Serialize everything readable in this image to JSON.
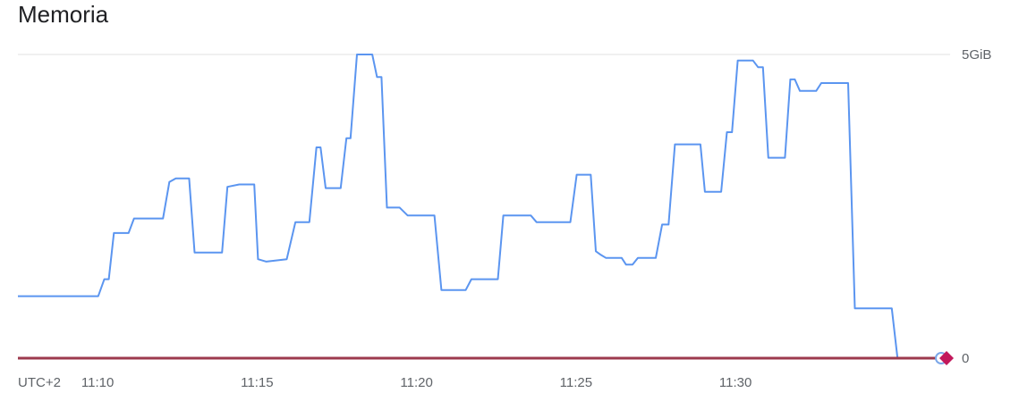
{
  "chart_data": {
    "type": "line",
    "title": "Memoria",
    "timezone_label": "UTC+2",
    "x_start_minutes": 7.5,
    "x_end_minutes": 34.2,
    "x_ticks": [
      {
        "t": 10,
        "label": "11:10"
      },
      {
        "t": 15,
        "label": "11:15"
      },
      {
        "t": 20,
        "label": "11:20"
      },
      {
        "t": 25,
        "label": "11:25"
      },
      {
        "t": 30,
        "label": "11:30"
      }
    ],
    "y_unit": "GiB",
    "ylim": [
      0,
      5
    ],
    "y_ticks": [
      {
        "value": 0,
        "label": "0"
      },
      {
        "value": 5,
        "label": "5GiB"
      }
    ],
    "grid": true,
    "colors": {
      "memory_line": "#5b95f0",
      "baseline": "#9c3a4e",
      "marker": "#c2185b",
      "marker_ring": "#7ba7e8",
      "gridline": "#e0e0e0",
      "title_text": "#202124",
      "axis_text": "#5f6368"
    },
    "series": [
      {
        "values": [
          [
            7.5,
            1.02
          ],
          [
            10.02,
            1.02
          ],
          [
            10.21,
            1.3
          ],
          [
            10.35,
            1.3
          ],
          [
            10.51,
            2.06
          ],
          [
            10.97,
            2.06
          ],
          [
            11.14,
            2.3
          ],
          [
            12.01,
            2.3
          ],
          [
            12.05,
            2.3
          ],
          [
            12.25,
            2.9
          ],
          [
            12.45,
            2.96
          ],
          [
            12.87,
            2.96
          ],
          [
            13.04,
            1.74
          ],
          [
            13.9,
            1.74
          ],
          [
            14.07,
            2.82
          ],
          [
            14.44,
            2.86
          ],
          [
            14.91,
            2.86
          ],
          [
            15.03,
            1.63
          ],
          [
            15.29,
            1.59
          ],
          [
            15.93,
            1.63
          ],
          [
            16.2,
            2.24
          ],
          [
            16.64,
            2.24
          ],
          [
            16.86,
            3.47
          ],
          [
            16.99,
            3.47
          ],
          [
            17.15,
            2.8
          ],
          [
            17.62,
            2.8
          ],
          [
            17.8,
            3.62
          ],
          [
            17.93,
            3.62
          ],
          [
            18.13,
            5.0
          ],
          [
            18.61,
            5.0
          ],
          [
            18.76,
            4.63
          ],
          [
            18.9,
            4.63
          ],
          [
            19.07,
            2.48
          ],
          [
            19.47,
            2.48
          ],
          [
            19.72,
            2.35
          ],
          [
            20.56,
            2.35
          ],
          [
            20.78,
            1.12
          ],
          [
            21.54,
            1.12
          ],
          [
            21.72,
            1.3
          ],
          [
            22.55,
            1.3
          ],
          [
            22.72,
            2.35
          ],
          [
            23.58,
            2.35
          ],
          [
            23.76,
            2.24
          ],
          [
            24.82,
            2.24
          ],
          [
            25.02,
            3.02
          ],
          [
            25.46,
            3.02
          ],
          [
            25.62,
            1.76
          ],
          [
            25.78,
            1.7
          ],
          [
            25.94,
            1.65
          ],
          [
            26.43,
            1.65
          ],
          [
            26.57,
            1.54
          ],
          [
            26.77,
            1.54
          ],
          [
            26.94,
            1.65
          ],
          [
            27.5,
            1.65
          ],
          [
            27.7,
            2.2
          ],
          [
            27.9,
            2.2
          ],
          [
            28.1,
            3.52
          ],
          [
            28.9,
            3.52
          ],
          [
            29.04,
            2.74
          ],
          [
            29.55,
            2.74
          ],
          [
            29.73,
            3.72
          ],
          [
            29.89,
            3.72
          ],
          [
            30.07,
            4.9
          ],
          [
            30.55,
            4.9
          ],
          [
            30.71,
            4.79
          ],
          [
            30.86,
            4.79
          ],
          [
            31.03,
            3.3
          ],
          [
            31.55,
            3.3
          ],
          [
            31.72,
            4.59
          ],
          [
            31.86,
            4.59
          ],
          [
            32.02,
            4.4
          ],
          [
            32.53,
            4.4
          ],
          [
            32.69,
            4.53
          ],
          [
            33.53,
            4.53
          ],
          [
            33.74,
            0.82
          ],
          [
            34.9,
            0.82
          ],
          [
            35.08,
            0.0
          ],
          [
            35.35,
            0.0
          ]
        ]
      }
    ]
  }
}
